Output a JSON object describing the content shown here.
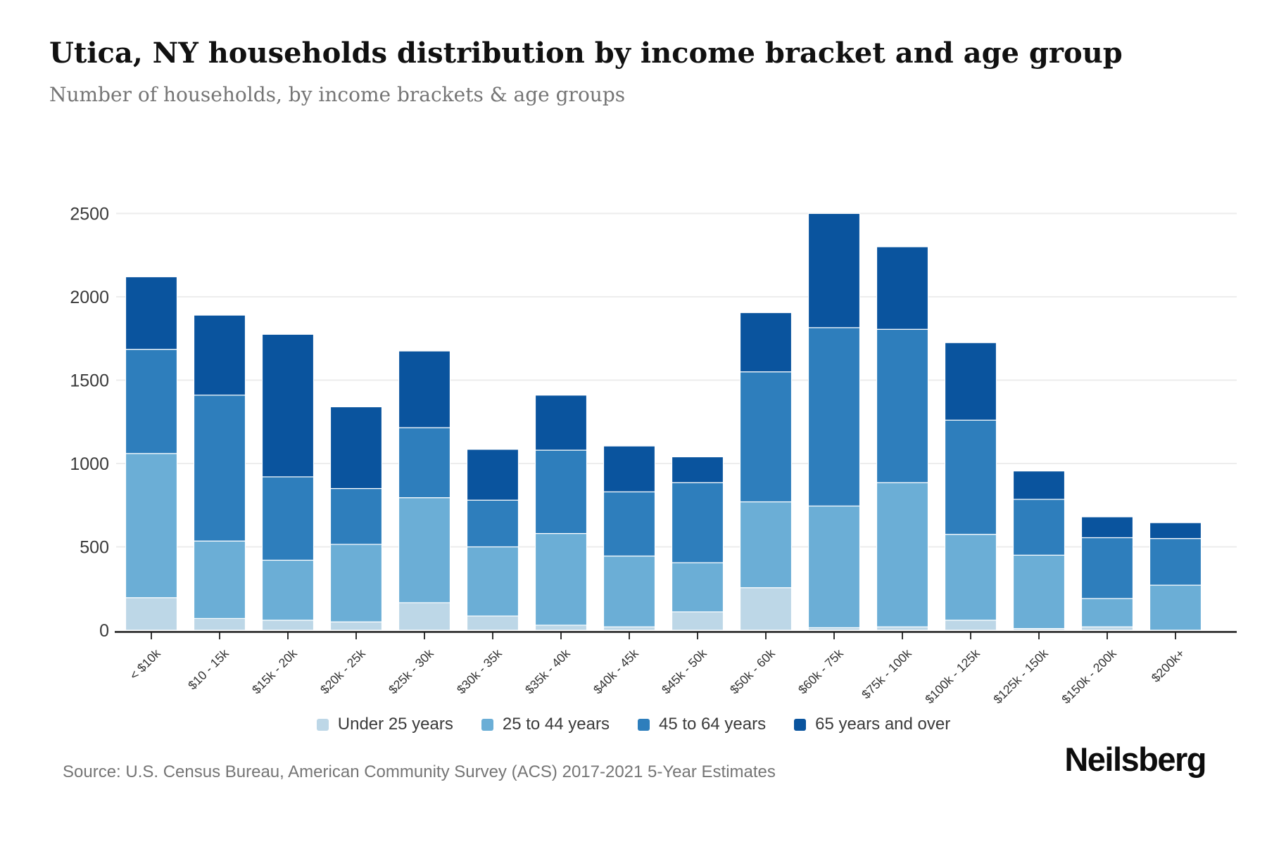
{
  "chart_data": {
    "type": "bar",
    "stacked": true,
    "title": "Utica, NY households distribution by income bracket and age group",
    "subtitle": "Number of households, by income brackets & age groups",
    "xlabel": "",
    "ylabel": "",
    "ylim": [
      0,
      2500
    ],
    "y_ticks": [
      0,
      500,
      1000,
      1500,
      2000,
      2500
    ],
    "grid": true,
    "legend_position": "bottom",
    "categories": [
      "< $10k",
      "$10 - 15k",
      "$15k - 20k",
      "$20k - 25k",
      "$25k - 30k",
      "$30k - 35k",
      "$35k - 40k",
      "$40k - 45k",
      "$45k - 50k",
      "$50k - 60k",
      "$60k - 75k",
      "$75k - 100k",
      "$100k - 125k",
      "$125k - 150k",
      "$150k - 200k",
      "$200k+"
    ],
    "series": [
      {
        "name": "Under 25 years",
        "color": "#bdd7e7",
        "values": [
          195,
          70,
          60,
          50,
          165,
          85,
          30,
          20,
          110,
          255,
          15,
          20,
          60,
          10,
          20,
          0
        ]
      },
      {
        "name": "25 to 44 years",
        "color": "#6baed6",
        "values": [
          865,
          465,
          360,
          465,
          630,
          415,
          550,
          425,
          295,
          515,
          730,
          865,
          515,
          440,
          170,
          270
        ]
      },
      {
        "name": "45 to 64 years",
        "color": "#2e7ebc",
        "values": [
          625,
          875,
          500,
          335,
          420,
          280,
          500,
          385,
          480,
          780,
          1070,
          920,
          685,
          335,
          365,
          280
        ]
      },
      {
        "name": "65 years and over",
        "color": "#0a549e",
        "values": [
          435,
          480,
          855,
          490,
          460,
          305,
          330,
          275,
          155,
          355,
          685,
          495,
          465,
          170,
          125,
          95
        ]
      }
    ],
    "totals": [
      2120,
      1890,
      1775,
      1340,
      1675,
      1085,
      1410,
      1105,
      1040,
      1905,
      2500,
      2300,
      1725,
      955,
      680,
      645
    ]
  },
  "footer": {
    "source": "Source: U.S. Census Bureau, American Community Survey (ACS) 2017-2021 5-Year Estimates",
    "brand": "Neilsberg"
  },
  "style": {
    "axis_color": "#1a1a1a",
    "grid_color": "#ededed",
    "tick_label_color": "#3a3a3a"
  }
}
